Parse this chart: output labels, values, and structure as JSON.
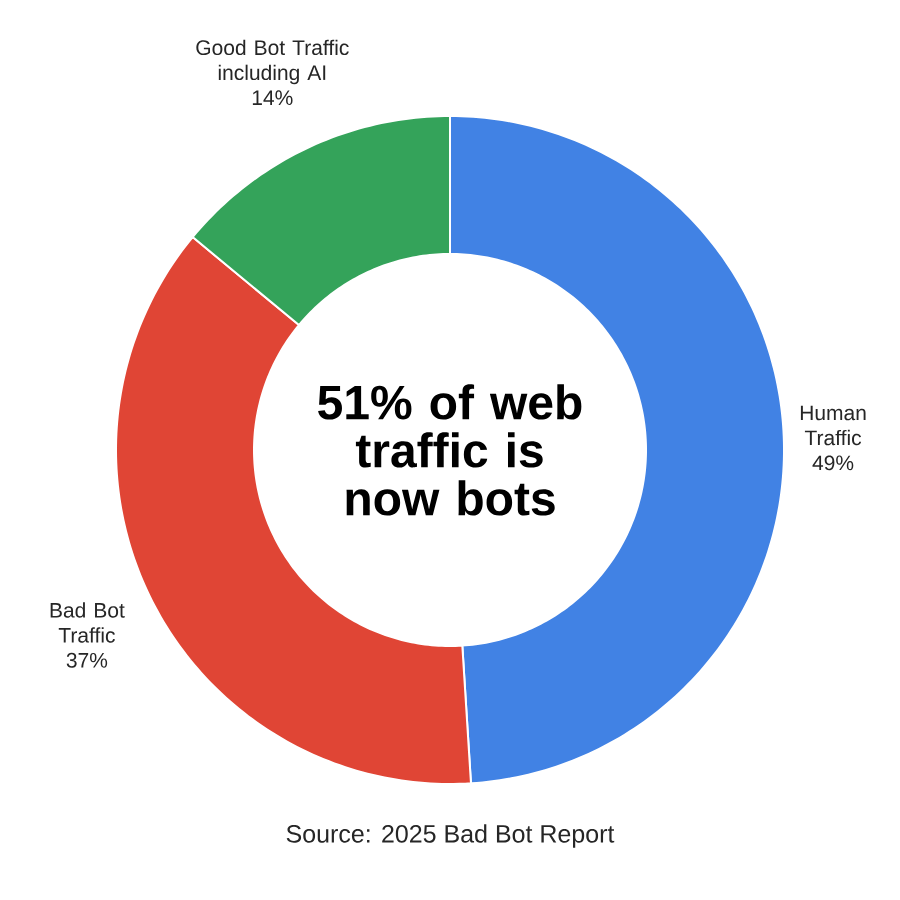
{
  "chart_data": {
    "type": "donut",
    "title": "51% of web traffic is now bots",
    "categories": [
      "Human Traffic",
      "Bad Bot Traffic",
      "Good Bot Traffic including AI"
    ],
    "values": [
      49,
      37,
      14
    ],
    "value_labels": [
      "49%",
      "37%",
      "14%"
    ],
    "colors": [
      "#4182e4",
      "#e04535",
      "#34a35a"
    ],
    "annotations": [
      "Source: 2025 Bad Bot Report"
    ]
  }
}
